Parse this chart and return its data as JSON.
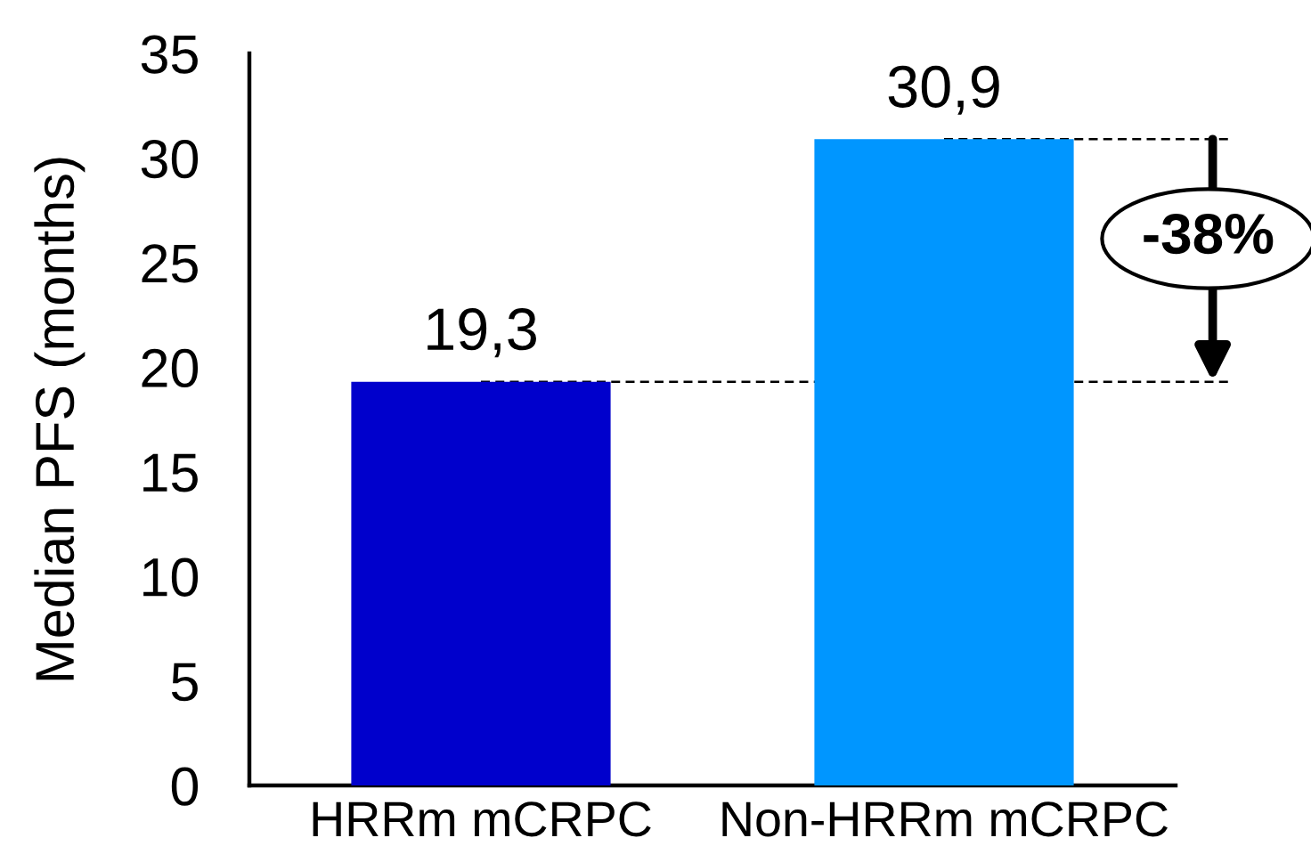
{
  "chart_data": {
    "type": "bar",
    "ylabel": "Median PFS (months)",
    "categories": [
      "HRRm mCRPC",
      "Non-HRRm mCRPC"
    ],
    "values": [
      19.3,
      30.9
    ],
    "colors": [
      "#0000cc",
      "#0096ff"
    ],
    "value_labels": [
      "19,3",
      "30,9"
    ],
    "ylim": [
      0,
      35
    ],
    "yticks": [
      0,
      5,
      10,
      15,
      20,
      25,
      30,
      35
    ],
    "grid": false,
    "ref_lines": [
      {
        "axis": "y",
        "value": 19.3,
        "color": "#000000",
        "line_style": "dashed"
      },
      {
        "axis": "y",
        "value": 30.9,
        "color": "#000000",
        "line_style": "dashed"
      }
    ],
    "annotations": [
      "-38%"
    ]
  }
}
